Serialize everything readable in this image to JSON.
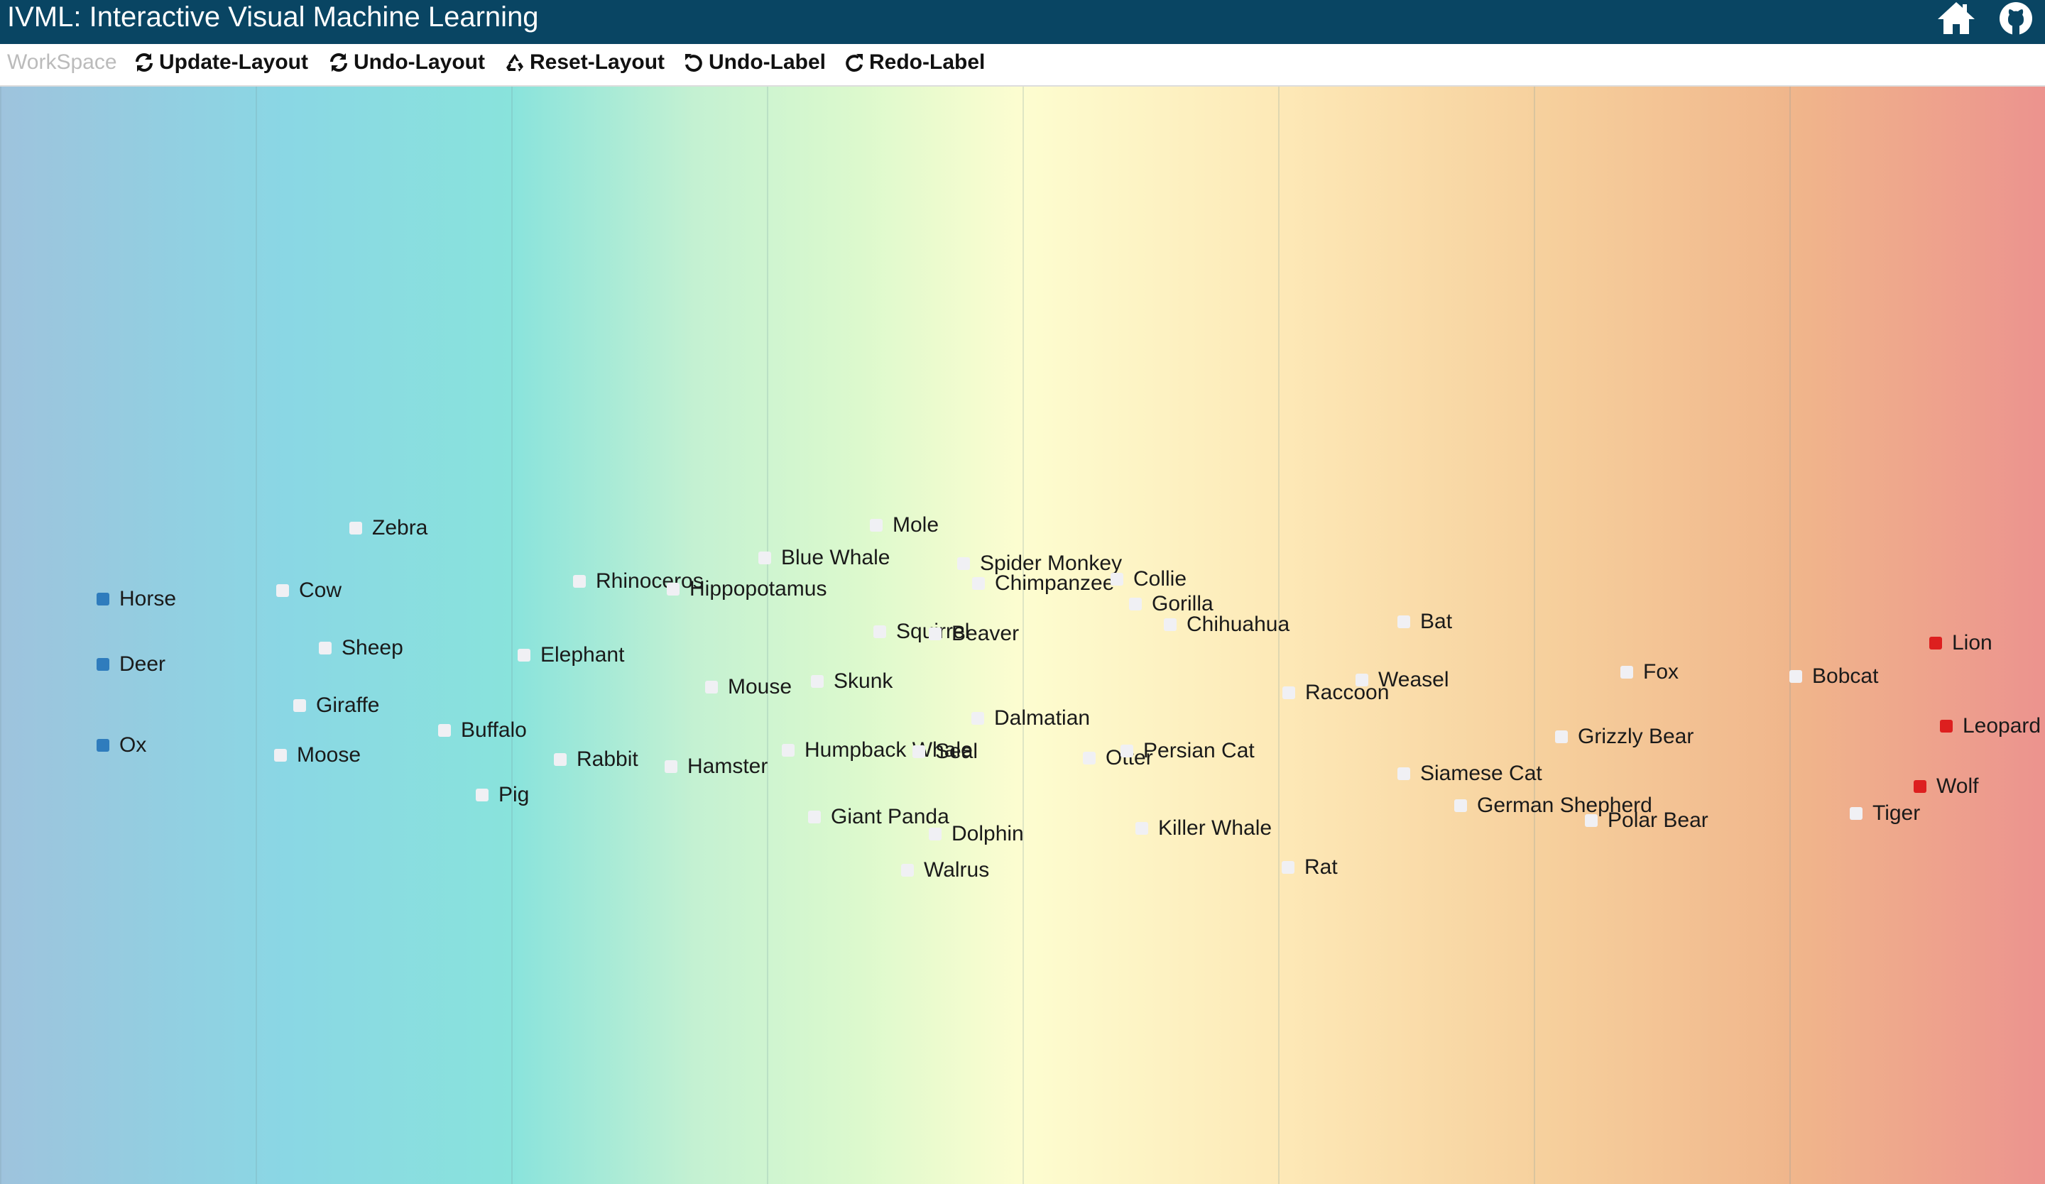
{
  "app": {
    "title": "IVML: Interactive Visual Machine Learning"
  },
  "header_icons": [
    "home-icon",
    "github-icon"
  ],
  "toolbar": {
    "workspace": "WorkSpace",
    "update_layout": "Update-Layout",
    "undo_layout": "Undo-Layout",
    "reset_layout": "Reset-Layout",
    "undo_label": "Undo-Label",
    "redo_label": "Redo-Label"
  },
  "colors": {
    "header_bg": "#094563",
    "labeled_left": "#2f7cbd",
    "labeled_right": "#dd1f1f",
    "unlabeled": "#f0f0f4"
  },
  "animals": [
    {
      "name": "Horse",
      "class": "left"
    },
    {
      "name": "Deer",
      "class": "left"
    },
    {
      "name": "Ox",
      "class": "left"
    },
    {
      "name": "Zebra",
      "class": "none"
    },
    {
      "name": "Cow",
      "class": "none"
    },
    {
      "name": "Sheep",
      "class": "none"
    },
    {
      "name": "Giraffe",
      "class": "none"
    },
    {
      "name": "Moose",
      "class": "none"
    },
    {
      "name": "Buffalo",
      "class": "none"
    },
    {
      "name": "Pig",
      "class": "none"
    },
    {
      "name": "Elephant",
      "class": "none"
    },
    {
      "name": "Rhinoceros",
      "class": "none"
    },
    {
      "name": "Hippopotamus",
      "class": "none"
    },
    {
      "name": "Rabbit",
      "class": "none"
    },
    {
      "name": "Hamster",
      "class": "none"
    },
    {
      "name": "Mouse",
      "class": "none"
    },
    {
      "name": "Blue Whale",
      "class": "none"
    },
    {
      "name": "Mole",
      "class": "none"
    },
    {
      "name": "Squirrel",
      "class": "none"
    },
    {
      "name": "Beaver",
      "class": "none"
    },
    {
      "name": "Skunk",
      "class": "none"
    },
    {
      "name": "Humpback Whale",
      "class": "none"
    },
    {
      "name": "Seal",
      "class": "none"
    },
    {
      "name": "Giant Panda",
      "class": "none"
    },
    {
      "name": "Dolphin",
      "class": "none"
    },
    {
      "name": "Walrus",
      "class": "none"
    },
    {
      "name": "Chimpanzee",
      "class": "none"
    },
    {
      "name": "Spider Monkey",
      "class": "none"
    },
    {
      "name": "Dalmatian",
      "class": "none"
    },
    {
      "name": "Collie",
      "class": "none"
    },
    {
      "name": "Gorilla",
      "class": "none"
    },
    {
      "name": "Chihuahua",
      "class": "none"
    },
    {
      "name": "Otter",
      "class": "none"
    },
    {
      "name": "Persian Cat",
      "class": "none"
    },
    {
      "name": "Killer Whale",
      "class": "none"
    },
    {
      "name": "Raccoon",
      "class": "none"
    },
    {
      "name": "Rat",
      "class": "none"
    },
    {
      "name": "Weasel",
      "class": "none"
    },
    {
      "name": "Bat",
      "class": "none"
    },
    {
      "name": "Siamese Cat",
      "class": "none"
    },
    {
      "name": "German Shepherd",
      "class": "none"
    },
    {
      "name": "Grizzly Bear",
      "class": "none"
    },
    {
      "name": "Polar Bear",
      "class": "none"
    },
    {
      "name": "Fox",
      "class": "none"
    },
    {
      "name": "Bobcat",
      "class": "none"
    },
    {
      "name": "Tiger",
      "class": "none"
    },
    {
      "name": "Lion",
      "class": "right"
    },
    {
      "name": "Leopard",
      "class": "right"
    },
    {
      "name": "Wolf",
      "class": "right"
    }
  ]
}
